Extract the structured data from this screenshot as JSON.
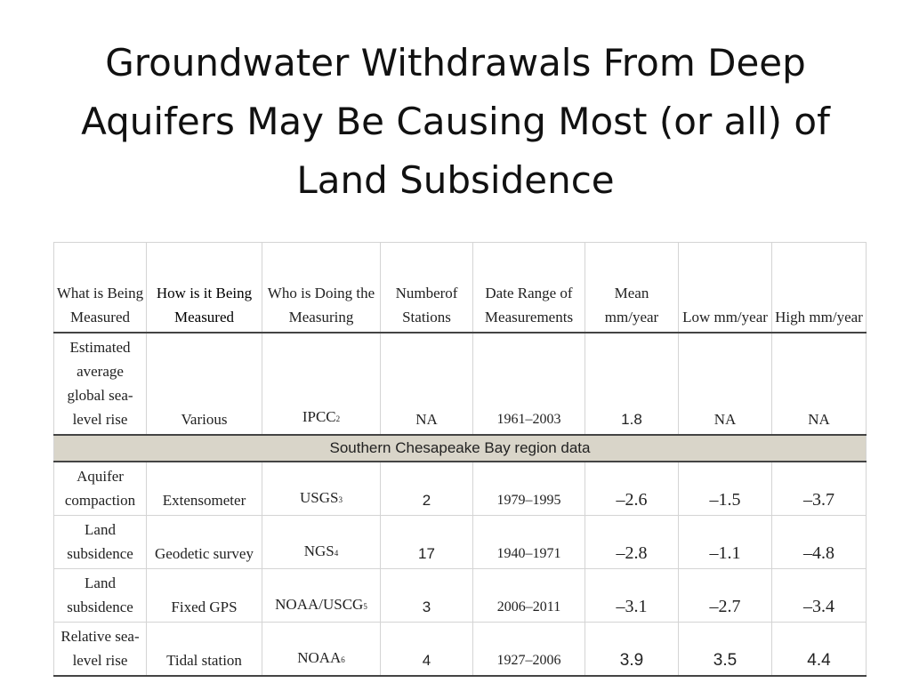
{
  "slide": {
    "title_lines": [
      "Groundwater Withdrawals From Deep",
      "Aquifers May Be Causing Most (or all) of",
      "Land Subsidence"
    ]
  },
  "table": {
    "headers": [
      "What is Being Measured",
      "How is it Being Measured",
      "Who is Doing the Measuring",
      "Numberof Stations",
      "Date Range of Measurements",
      "Mean mm/year",
      "Low mm/year",
      "High mm/year"
    ],
    "global_row": {
      "what": "Estimated average global sea-level rise",
      "how": "Various",
      "who": "IPCC",
      "who_ref": "2",
      "stations": "NA",
      "dates": "1961–2003",
      "mean": "1.8",
      "low": "NA",
      "high": "NA"
    },
    "region_label": "Southern Chesapeake Bay region data",
    "region_rows": [
      {
        "what": "Aquifer compaction",
        "how": "Extensometer",
        "who": "USGS",
        "who_ref": "3",
        "stations": "2",
        "dates": "1979–1995",
        "mean": "–2.6",
        "low": "–1.5",
        "high": "–3.7"
      },
      {
        "what": "Land subsidence",
        "how": "Geodetic survey",
        "who": "NGS",
        "who_ref": "4",
        "stations": "17",
        "dates": "1940–1971",
        "mean": "–2.8",
        "low": "–1.1",
        "high": "–4.8"
      },
      {
        "what": "Land subsidence",
        "how": "Fixed GPS",
        "who": "NOAA/USCG",
        "who_ref": "5",
        "stations": "3",
        "dates": "2006–2011",
        "mean": "–3.1",
        "low": "–2.7",
        "high": "–3.4"
      },
      {
        "what": "Relative sea-level rise",
        "how": "Tidal station",
        "who": "NOAA",
        "who_ref": "6",
        "stations": "4",
        "dates": "1927–2006",
        "mean": "3.9",
        "low": "3.5",
        "high": "4.4"
      }
    ]
  }
}
